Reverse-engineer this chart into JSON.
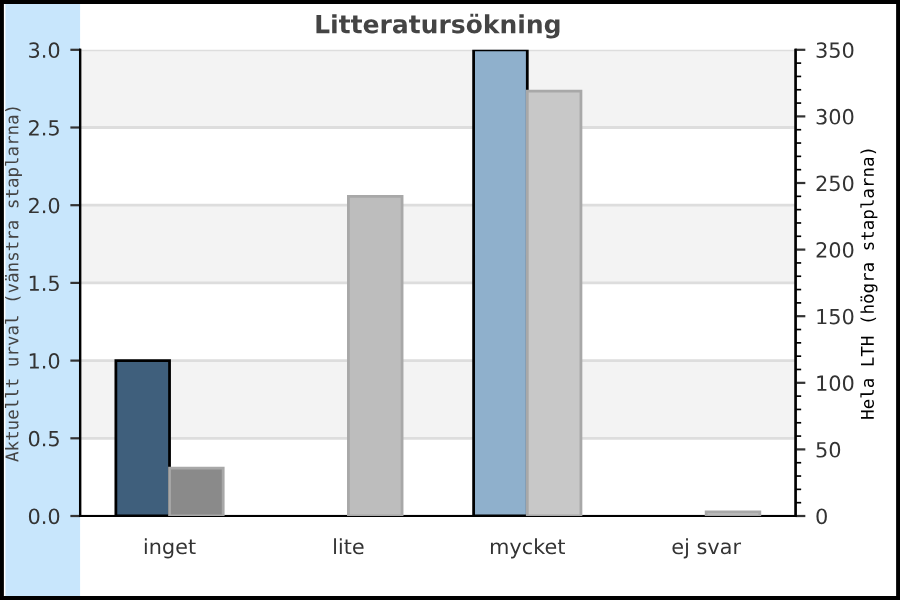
{
  "chart_data": {
    "type": "bar",
    "title": "Litteratursökning",
    "ylabel": "Aktuellt urval (vänstra staplarna)",
    "y2label": "Hela LTH (högra staplarna)",
    "categories": [
      "inget",
      "lite",
      "mycket",
      "ej svar"
    ],
    "series": [
      {
        "colors": [
          "#3f5f7c",
          "#3f5f7c",
          "#8fb0cc",
          "#8fb0cc"
        ],
        "values": [
          1,
          0,
          3,
          0
        ]
      },
      {
        "axis": "y2",
        "colors": [
          "#8a8a8a",
          "#bdbdbd",
          "#c8c8c8",
          "#c8c8c8"
        ],
        "values": [
          36,
          240,
          319,
          3
        ]
      }
    ],
    "ylim": [
      0,
      3.0
    ],
    "yticks": [
      {
        "value": 0,
        "label": "0.0"
      },
      0.5,
      {
        "value": 1,
        "label": "1.0"
      },
      1.5,
      {
        "value": 2,
        "label": "2.0"
      },
      2.5,
      {
        "value": 3,
        "label": "3.0"
      }
    ],
    "y2lim": [
      0,
      350
    ],
    "y2ticks": [
      0,
      50,
      100,
      150,
      200,
      250,
      300,
      350
    ],
    "bands": [
      {
        "axis": "y",
        "from": 0.5,
        "to": 1.0,
        "color": "#f3f3f3"
      },
      {
        "axis": "y",
        "from": 1.5,
        "to": 2.0,
        "color": "#f3f3f3"
      },
      {
        "axis": "y",
        "from": 2.5,
        "to": 3.0,
        "color": "#f3f3f3"
      }
    ],
    "grid": "y"
  }
}
